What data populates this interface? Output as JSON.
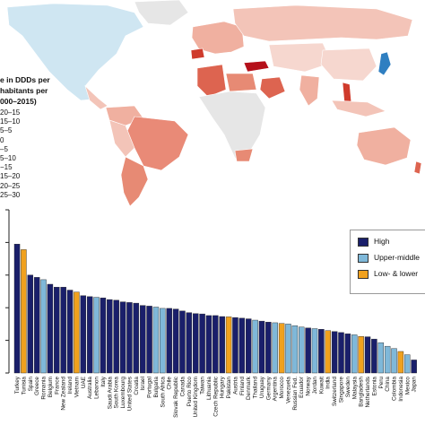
{
  "map": {
    "legend_title_lines": [
      "e in DDDs per",
      "habitants per",
      "000–2015)"
    ],
    "legend_entries": [
      {
        "label": "20–15",
        "color": "#2f7fc1"
      },
      {
        "label": "15–10",
        "color": "#5aa3d6"
      },
      {
        "label": "5–5",
        "color": "#9ccbe8"
      },
      {
        "label": "0",
        "color": "#d5ecf6"
      },
      {
        "label": "–5",
        "color": "#f6d7cf"
      },
      {
        "label": "5–10",
        "color": "#f0b0a0"
      },
      {
        "label": "−15",
        "color": "#e78a74"
      },
      {
        "label": "15–20",
        "color": "#dd6450"
      },
      {
        "label": "20–25",
        "color": "#cf3b2c"
      },
      {
        "label": "25–30",
        "color": "#b5101a"
      }
    ],
    "colors": {
      "ocean": "#ffffff",
      "no_data": "#e6e6e6",
      "north_america": "#cfe6f2",
      "russia": "#f3c4b8",
      "brazil": "#e98a77",
      "turkey": "#b5101a",
      "algeria": "#dd6450",
      "australia": "#f0b0a0",
      "japan": "#2f7fc1",
      "china": "#f6d7cf"
    }
  },
  "chart_data": {
    "type": "bar",
    "ylim": [
      0,
      50
    ],
    "legend_position": "top-right",
    "series_colors": {
      "High": "#1a1f6b",
      "Upper-middle": "#7fb8d9",
      "Low- & lower": "#f0a11e"
    },
    "legend": [
      {
        "name": "High",
        "color": "#1a1f6b"
      },
      {
        "name": "Upper-middle",
        "color": "#7fb8d9"
      },
      {
        "name": "Low- & lower",
        "color": "#f0a11e"
      }
    ],
    "categories": [
      "Turkey",
      "Tunisia",
      "Spain",
      "Greece",
      "Romania",
      "Belgium",
      "France",
      "New Zealand",
      "Ireland",
      "Vietnam",
      "UAE",
      "Australia",
      "Lebanon",
      "Italy",
      "Saudi Arabia",
      "South Korea",
      "Luxembourg",
      "United States",
      "Croatia",
      "Israel",
      "Portugal",
      "Bulgaria",
      "South Africa",
      "Chile",
      "Slovak Republic",
      "Canada",
      "Puerto Rico",
      "United Kingdom",
      "Taiwan",
      "Lithuania",
      "Czech Republic",
      "Hungary",
      "Pakistan",
      "Austria",
      "Finland",
      "Denmark",
      "Thailand",
      "Uruguay",
      "Germany",
      "Argentina",
      "Morocco",
      "Venezuela",
      "Russian Fed.",
      "Ecuador",
      "Norway",
      "Jordan",
      "Kuwait",
      "India",
      "Switzerland",
      "Singapore",
      "Sweden",
      "Malaysia",
      "Bangladesh",
      "Netherlands",
      "Estonia",
      "Peru",
      "China",
      "Colombia",
      "Indonesia",
      "Mexico",
      "Japan"
    ],
    "values": [
      39.5,
      37.8,
      30.0,
      29.3,
      28.6,
      27.2,
      26.3,
      26.3,
      25.4,
      24.8,
      23.7,
      23.4,
      23.2,
      23.0,
      22.5,
      22.3,
      21.8,
      21.6,
      21.4,
      20.7,
      20.5,
      20.2,
      19.8,
      19.8,
      19.6,
      19.0,
      18.5,
      18.2,
      18.1,
      17.6,
      17.6,
      17.3,
      17.2,
      17.0,
      16.8,
      16.6,
      16.2,
      15.9,
      15.6,
      15.4,
      15.2,
      15.0,
      14.5,
      14.1,
      13.8,
      13.6,
      13.4,
      13.0,
      12.7,
      12.4,
      12.0,
      11.7,
      11.2,
      11.1,
      10.4,
      9.3,
      8.2,
      7.5,
      6.6,
      5.6,
      4.0
    ],
    "income": [
      "High",
      "Low- & lower",
      "High",
      "High",
      "Upper-middle",
      "High",
      "High",
      "High",
      "High",
      "Low- & lower",
      "High",
      "High",
      "Upper-middle",
      "High",
      "High",
      "High",
      "High",
      "High",
      "High",
      "High",
      "High",
      "Upper-middle",
      "Upper-middle",
      "High",
      "High",
      "High",
      "High",
      "High",
      "High",
      "High",
      "High",
      "High",
      "Low- & lower",
      "High",
      "High",
      "High",
      "Upper-middle",
      "High",
      "High",
      "Upper-middle",
      "Low- & lower",
      "Upper-middle",
      "Upper-middle",
      "Upper-middle",
      "High",
      "Upper-middle",
      "High",
      "Low- & lower",
      "High",
      "High",
      "High",
      "Upper-middle",
      "Low- & lower",
      "High",
      "High",
      "Upper-middle",
      "Upper-middle",
      "Upper-middle",
      "Low- & lower",
      "Upper-middle",
      "High"
    ]
  }
}
